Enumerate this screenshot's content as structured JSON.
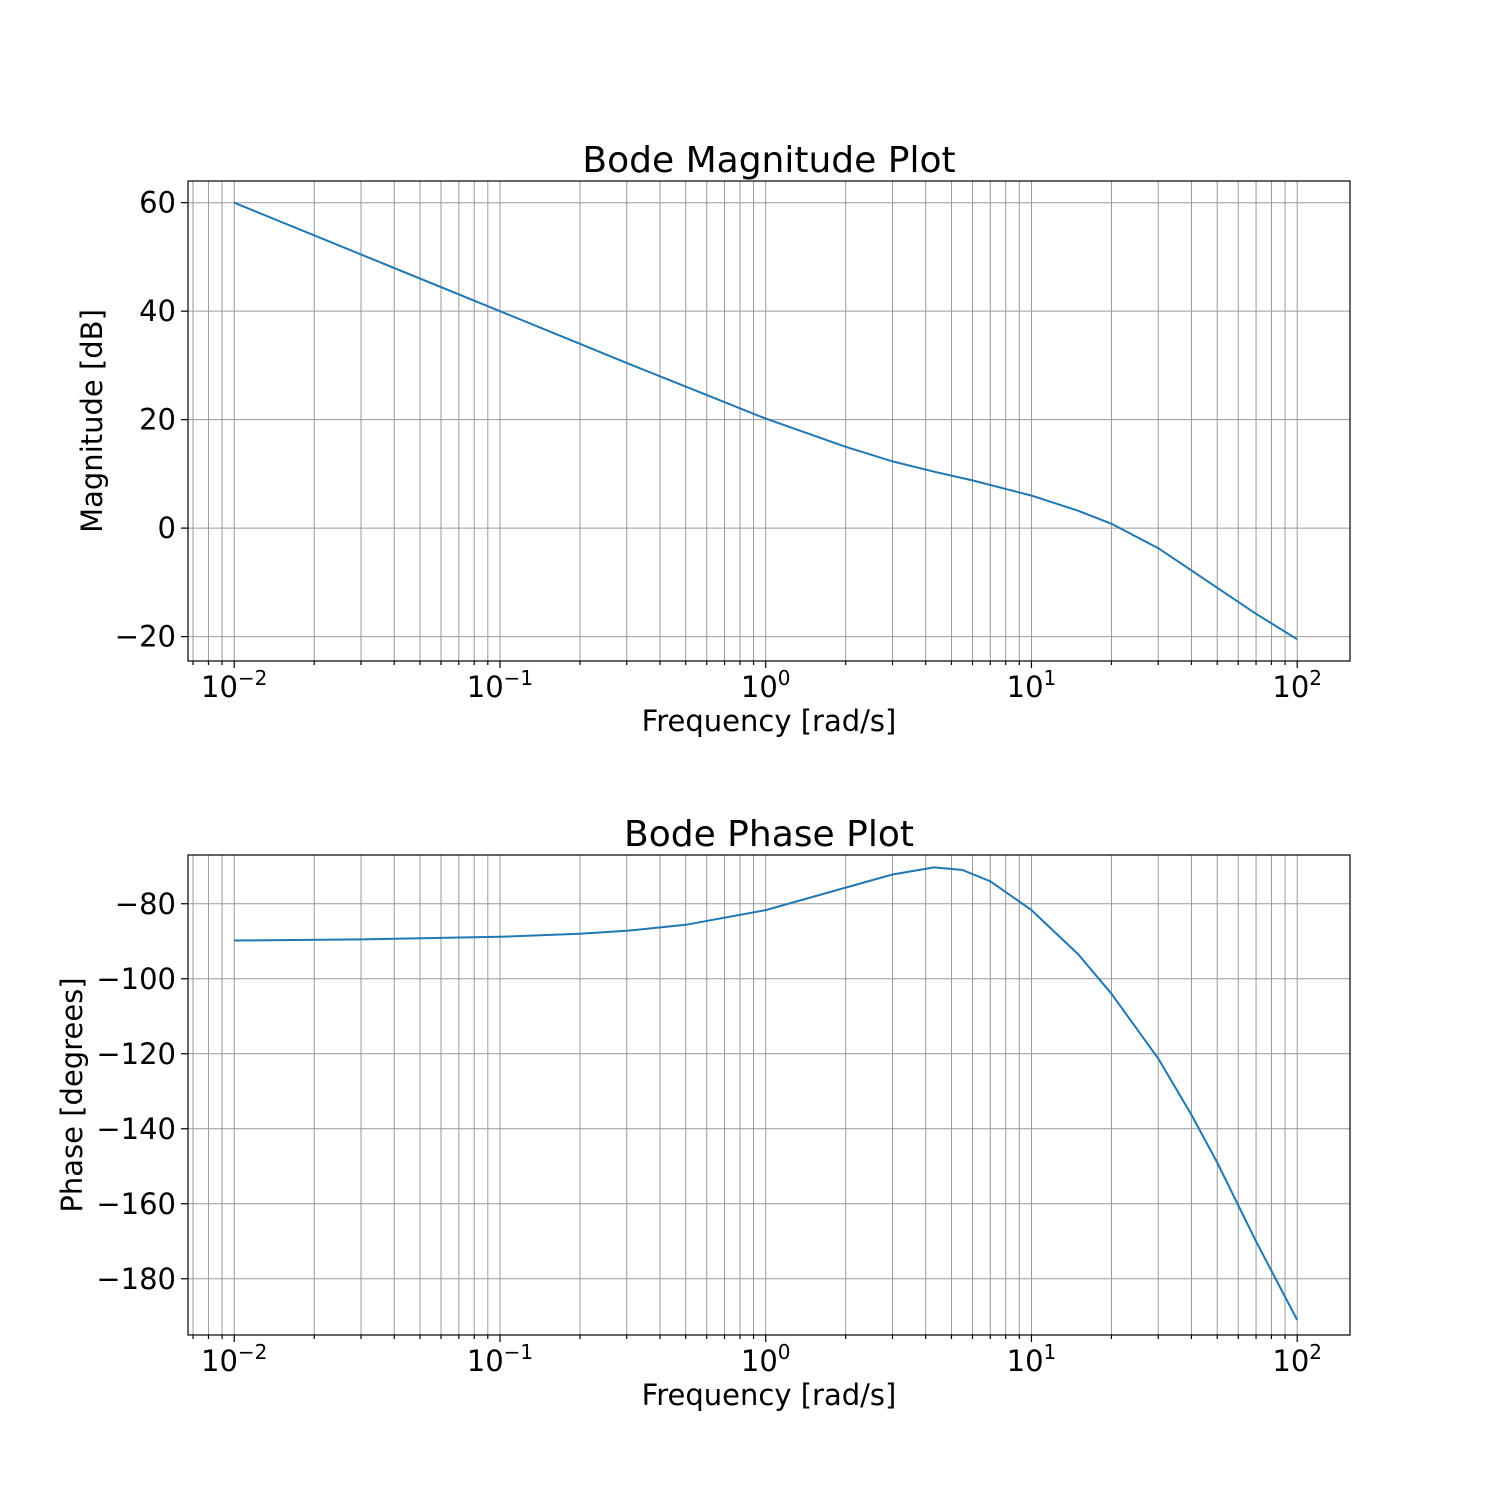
{
  "colors": {
    "series": "#1f77b4",
    "grid": "#9a9a9a",
    "background": "#ffffff"
  },
  "chart_data": [
    {
      "type": "line",
      "title": "Bode Magnitude Plot",
      "xlabel": "Frequency [rad/s]",
      "ylabel": "Magnitude [dB]",
      "xscale": "log",
      "xlim": [
        0.0067,
        158
      ],
      "ylim": [
        -24.5,
        64
      ],
      "grid": "both major and minor",
      "xticks": [
        {
          "base": "10",
          "exp": "−2",
          "value": 0.01
        },
        {
          "base": "10",
          "exp": "−1",
          "value": 0.1
        },
        {
          "base": "10",
          "exp": "0",
          "value": 1
        },
        {
          "base": "10",
          "exp": "1",
          "value": 10
        },
        {
          "base": "10",
          "exp": "2",
          "value": 100
        }
      ],
      "yticks": [
        {
          "label": "60",
          "value": 60
        },
        {
          "label": "40",
          "value": 40
        },
        {
          "label": "20",
          "value": 20
        },
        {
          "label": "0",
          "value": 0
        },
        {
          "label": "−20",
          "value": -20
        }
      ],
      "series": [
        {
          "x": [
            0.01,
            0.0316,
            0.1,
            0.316,
            1,
            2,
            3,
            4.3,
            6,
            10,
            15,
            20,
            30,
            45,
            70,
            100
          ],
          "y": [
            60,
            50,
            40,
            30,
            20.2,
            15.0,
            12.3,
            10.4,
            8.8,
            6.0,
            3.2,
            0.8,
            -3.7,
            -9.5,
            -15.8,
            -20.5
          ]
        }
      ]
    },
    {
      "type": "line",
      "title": "Bode Phase Plot",
      "xlabel": "Frequency [rad/s]",
      "ylabel": "Phase [degrees]",
      "xscale": "log",
      "xlim": [
        0.0067,
        158
      ],
      "ylim": [
        -195,
        -67
      ],
      "grid": "both major and minor",
      "xticks": [
        {
          "base": "10",
          "exp": "−2",
          "value": 0.01
        },
        {
          "base": "10",
          "exp": "−1",
          "value": 0.1
        },
        {
          "base": "10",
          "exp": "0",
          "value": 1
        },
        {
          "base": "10",
          "exp": "1",
          "value": 10
        },
        {
          "base": "10",
          "exp": "2",
          "value": 100
        }
      ],
      "yticks": [
        {
          "label": "−80",
          "value": -80
        },
        {
          "label": "−100",
          "value": -100
        },
        {
          "label": "−120",
          "value": -120
        },
        {
          "label": "−140",
          "value": -140
        },
        {
          "label": "−160",
          "value": -160
        },
        {
          "label": "−180",
          "value": -180
        }
      ],
      "series": [
        {
          "x": [
            0.01,
            0.03,
            0.1,
            0.2,
            0.3,
            0.5,
            1,
            2,
            3,
            4.3,
            5.5,
            7,
            10,
            15,
            20,
            30,
            40,
            50,
            70,
            100
          ],
          "y": [
            -89.8,
            -89.5,
            -88.8,
            -88.0,
            -87.2,
            -85.6,
            -81.7,
            -75.7,
            -72.2,
            -70.3,
            -71.0,
            -74.0,
            -81.7,
            -93.5,
            -104.0,
            -121.3,
            -136.3,
            -149.0,
            -170.0,
            -191.0
          ]
        }
      ]
    }
  ]
}
